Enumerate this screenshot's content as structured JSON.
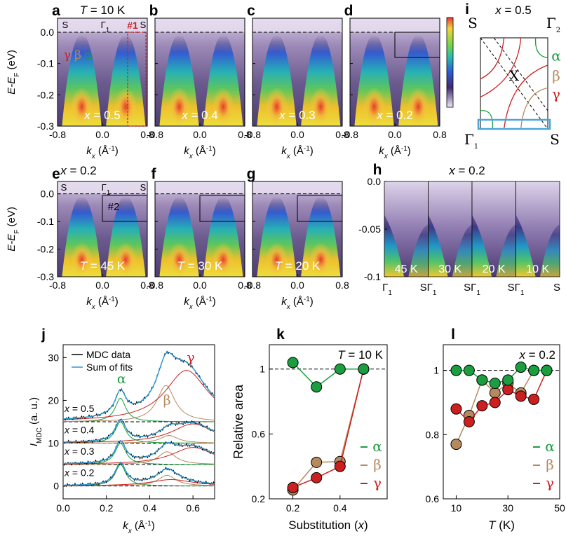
{
  "colors": {
    "alpha": "#1a9e3f",
    "beta": "#b58a5e",
    "gamma": "#cc1f1f",
    "cut": "#4aa6d8",
    "dark": "#2a1f3d",
    "mdc_data": "#000000",
    "fit_sum": "#2a9bd6"
  },
  "panels": {
    "a": {
      "letter": "a",
      "header": "T = 10 K",
      "label": "x = 0.5",
      "S_left": "S",
      "Gamma": "Γ",
      "Gamma_sub": "1",
      "S_right": "S",
      "cut": "#1",
      "bands": {
        "g": "γ",
        "b": "β",
        "a": "α"
      }
    },
    "b": {
      "letter": "b",
      "label": "x = 0.4"
    },
    "c": {
      "letter": "c",
      "label": "x = 0.3"
    },
    "d": {
      "letter": "d",
      "label": "x = 0.2"
    },
    "e": {
      "letter": "e",
      "header": "x = 0.2",
      "label": "T = 45 K",
      "S_left": "S",
      "Gamma": "Γ",
      "Gamma_sub": "1",
      "S_right": "S",
      "box": "#2"
    },
    "f": {
      "letter": "f",
      "label": "T = 30 K"
    },
    "g": {
      "letter": "g",
      "label": "T = 20 K"
    },
    "h": {
      "letter": "h",
      "header": "x = 0.2",
      "temps": [
        "45 K",
        "30 K",
        "20 K",
        "10 K"
      ],
      "xticks": [
        "Γ",
        "SΓ",
        "SΓ",
        "SΓ",
        "S"
      ],
      "sub": "1",
      "yticks": [
        "0.0",
        "-0.05",
        "-0.1"
      ]
    },
    "i": {
      "letter": "i",
      "header": "x = 0.5",
      "S_tl": "S",
      "G2": "Γ",
      "G2_sub": "2",
      "X": "X",
      "G1": "Γ",
      "G1_sub": "1",
      "S_br": "S",
      "alpha": "α",
      "beta": "β",
      "gamma": "γ"
    }
  },
  "arpes_axes": {
    "ylabel": "E-E",
    "ylabel_sub": "F",
    "ylabel_unit": " (eV)",
    "yticks": [
      "0.0",
      "-0.1",
      "-0.2",
      "-0.3"
    ],
    "xticks": [
      "-0.8",
      "0.0",
      "0.8"
    ],
    "xlabel": "k",
    "xlabel_sub": "x",
    "xlabel_unit": " (Å",
    "xlabel_sup": "-1",
    "xlabel_close": ")"
  },
  "chart_data": [
    {
      "id": "j",
      "type": "line",
      "letter": "j",
      "ylabel": "I",
      "ylabel_sub": "MDC",
      "ylabel_unit": " (a. u.)",
      "xlabel": "k",
      "xlabel_sub": "x",
      "xlabel_unit": " (Å",
      "xlabel_sup": "-1",
      "xlabel_close": ")",
      "xlim": [
        0.0,
        0.7
      ],
      "ylim": [
        -3,
        33
      ],
      "xticks": [
        "0.0",
        "0.2",
        "0.4",
        "0.6"
      ],
      "yticks": [
        "0",
        "10",
        "20",
        "30"
      ],
      "legend": [
        "MDC data",
        "Sum of fits"
      ],
      "curves": [
        {
          "label": "x = 0.5",
          "offset": 15,
          "alpha": [
            0.265,
            5.5
          ],
          "beta": [
            0.475,
            8.5
          ],
          "gamma": [
            0.57,
            12
          ],
          "bg": 0
        },
        {
          "label": "x = 0.4",
          "offset": 10,
          "alpha": [
            0.265,
            5.0
          ],
          "beta": [
            0.49,
            1.8
          ],
          "gamma": [
            0.6,
            4.5
          ],
          "bg": 0
        },
        {
          "label": "x = 0.3",
          "offset": 5,
          "alpha": [
            0.265,
            5.0
          ],
          "beta": [
            0.48,
            3.0
          ],
          "gamma": [
            0.6,
            4.0
          ],
          "bg": 0
        },
        {
          "label": "x = 0.2",
          "offset": 0,
          "alpha": [
            0.265,
            5.0
          ],
          "beta": [
            0.48,
            2.5
          ],
          "gamma": [
            0.5,
            1.5
          ],
          "bg": 0
        }
      ],
      "band_labels": {
        "alpha": "α",
        "beta": "β",
        "gamma": "γ"
      }
    },
    {
      "id": "k",
      "type": "scatter",
      "letter": "k",
      "annotation": "T = 10 K",
      "xlabel": "Substitution (x)",
      "ylabel": "Relative area",
      "xlim": [
        0.1,
        0.6
      ],
      "ylim": [
        0.2,
        1.15
      ],
      "xticks": [
        "0.2",
        "0.4"
      ],
      "yticks": [
        "0.2",
        "0.6",
        "1"
      ],
      "series": [
        {
          "name": "α",
          "x": [
            0.2,
            0.3,
            0.4,
            0.5
          ],
          "y": [
            1.04,
            0.89,
            1.0,
            1.0
          ]
        },
        {
          "name": "β",
          "x": [
            0.2,
            0.3,
            0.4,
            0.5
          ],
          "y": [
            0.255,
            0.425,
            0.43,
            1.0
          ]
        },
        {
          "name": "γ",
          "x": [
            0.2,
            0.3,
            0.4,
            0.5
          ],
          "y": [
            0.27,
            0.33,
            0.4,
            1.0
          ]
        }
      ]
    },
    {
      "id": "l",
      "type": "scatter",
      "letter": "l",
      "annotation": "x = 0.2",
      "xlabel": "T (K)",
      "ylabel": "",
      "xlim": [
        5,
        50
      ],
      "ylim": [
        0.6,
        1.08
      ],
      "xticks": [
        "10",
        "30",
        "50"
      ],
      "yticks": [
        "0.6",
        "0.8",
        "1"
      ],
      "series": [
        {
          "name": "α",
          "x": [
            10,
            15,
            20,
            25,
            30,
            35,
            40,
            45
          ],
          "y": [
            1.0,
            1.0,
            0.97,
            0.96,
            0.97,
            1.01,
            1.0,
            1.0
          ]
        },
        {
          "name": "β",
          "x": [
            10,
            15,
            20,
            25,
            30,
            35,
            40,
            45
          ],
          "y": [
            0.77,
            0.86,
            0.97,
            0.93,
            0.96,
            0.93,
            1.0,
            1.0
          ]
        },
        {
          "name": "γ",
          "x": [
            10,
            15,
            20,
            25,
            30,
            35,
            40,
            45
          ],
          "y": [
            0.88,
            0.84,
            0.89,
            0.9,
            0.94,
            0.92,
            0.91,
            1.0
          ]
        }
      ]
    }
  ]
}
